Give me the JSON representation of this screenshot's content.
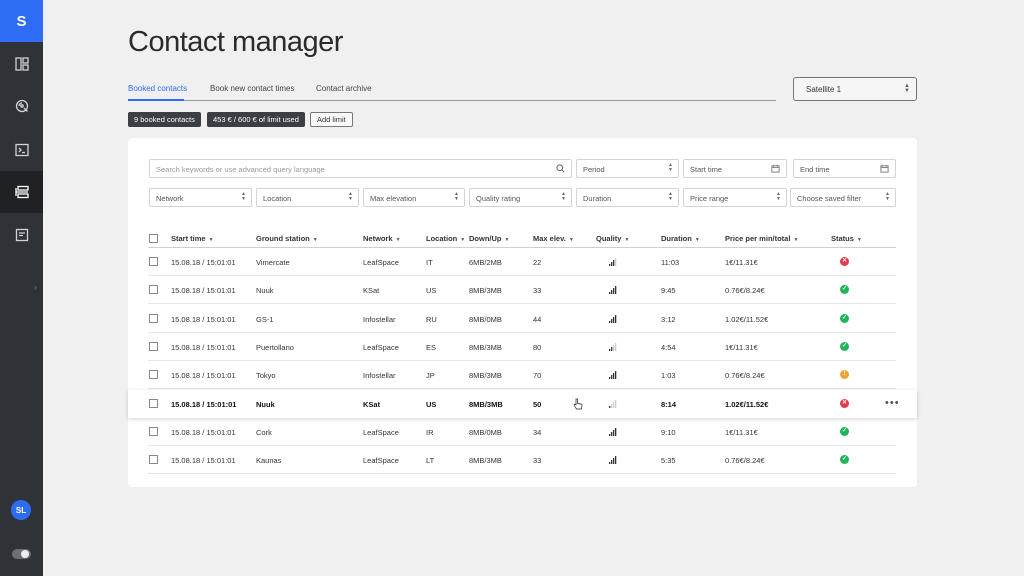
{
  "sidebar": {
    "logo": "S",
    "items": [
      {
        "name": "dashboard-icon",
        "active": false
      },
      {
        "name": "satellite-icon",
        "active": false
      },
      {
        "name": "terminal-icon",
        "active": false
      },
      {
        "name": "contacts-icon",
        "active": true
      },
      {
        "name": "document-icon",
        "active": false
      }
    ],
    "expand_icon": "›",
    "avatar": "SL"
  },
  "header": {
    "title": "Contact manager",
    "tabs": [
      {
        "label": "Booked contacts",
        "active": true
      },
      {
        "label": "Book new contact times",
        "active": false
      },
      {
        "label": "Contact archive",
        "active": false
      }
    ],
    "satellite_select": "Satellite 1"
  },
  "summary": {
    "booked": "9 booked contacts",
    "limit": "453 € / 600 € of limit used",
    "add_limit": "Add limit"
  },
  "filters": {
    "search_placeholder": "Search keywords or use advanced query language",
    "period": "Period",
    "start_time": "Start time",
    "end_time": "End time",
    "network": "Network",
    "location": "Location",
    "max_elevation": "Max elevation",
    "quality_rating": "Quality rating",
    "duration": "Duration",
    "price_range": "Price range",
    "saved_filter": "Choose saved filter"
  },
  "table": {
    "headers": [
      "Start time",
      "Ground station",
      "Network",
      "Location",
      "Down/Up",
      "Max elev.",
      "Quality",
      "Duration",
      "Price per min/total",
      "Status"
    ],
    "rows": [
      {
        "start": "15.08.18 / 15:01:01",
        "station": "Vimercate",
        "network": "LeafSpace",
        "location": "IT",
        "downup": "6MB/2MB",
        "elev": "22",
        "quality": 3,
        "duration": "11:03",
        "price": "1€/11.31€",
        "status": "error"
      },
      {
        "start": "15.08.18 / 15:01:01",
        "station": "Nuuk",
        "network": "KSat",
        "location": "US",
        "downup": "8MB/3MB",
        "elev": "33",
        "quality": 4,
        "duration": "9:45",
        "price": "0.76€/8.24€",
        "status": "ok"
      },
      {
        "start": "15.08.18 / 15:01:01",
        "station": "GS-1",
        "network": "Infostellar",
        "location": "RU",
        "downup": "8MB/0MB",
        "elev": "44",
        "quality": 4,
        "duration": "3:12",
        "price": "1.02€/11.52€",
        "status": "ok"
      },
      {
        "start": "15.08.18 / 15:01:01",
        "station": "Puertollano",
        "network": "LeafSpace",
        "location": "ES",
        "downup": "8MB/3MB",
        "elev": "80",
        "quality": 2,
        "duration": "4:54",
        "price": "1€/11.31€",
        "status": "ok"
      },
      {
        "start": "15.08.18 / 15:01:01",
        "station": "Tokyo",
        "network": "Infostellar",
        "location": "JP",
        "downup": "8MB/3MB",
        "elev": "70",
        "quality": 4,
        "duration": "1:03",
        "price": "0.76€/8.24€",
        "status": "warning"
      },
      {
        "start": "15.08.18 / 15:01:01",
        "station": "Nuuk",
        "network": "KSat",
        "location": "US",
        "downup": "8MB/3MB",
        "elev": "50",
        "quality": 1,
        "duration": "8:14",
        "price": "1.02€/11.52€",
        "status": "error",
        "highlighted": true,
        "more": "•••"
      },
      {
        "start": "15.08.18 / 15:01:01",
        "station": "Cork",
        "network": "LeafSpace",
        "location": "IR",
        "downup": "8MB/0MB",
        "elev": "34",
        "quality": 4,
        "duration": "9:10",
        "price": "1€/11.31€",
        "status": "ok"
      },
      {
        "start": "15.08.18 / 15:01:01",
        "station": "Kaunas",
        "network": "LeafSpace",
        "location": "LT",
        "downup": "8MB/3MB",
        "elev": "33",
        "quality": 4,
        "duration": "5:35",
        "price": "0.76€/8.24€",
        "status": "ok"
      }
    ]
  },
  "colors": {
    "accent": "#2f6cf5",
    "ok": "#22b45a",
    "error": "#e53a4b",
    "warning": "#f4a331"
  }
}
